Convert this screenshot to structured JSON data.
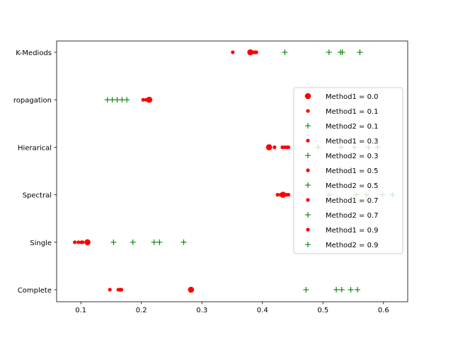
{
  "chart_data": {
    "type": "scatter",
    "categories": [
      "Complete",
      "Single ",
      "Spectral",
      "Hierarical",
      "ropagation",
      "K-Mediods"
    ],
    "xlim": [
      0.06,
      0.64
    ],
    "x_ticks": [
      0.1,
      0.2,
      0.3,
      0.4,
      0.5,
      0.6
    ],
    "x_tick_labels": [
      "0.1",
      "0.2",
      "0.3",
      "0.4",
      "0.5",
      "0.6"
    ],
    "legend_position": "center-right",
    "grid": false,
    "colors": {
      "method1": "#ff0000",
      "method2": "#008000"
    },
    "series": [
      {
        "name": "Method1 = 0.0",
        "marker": "big-dot",
        "color": "#ff0000",
        "points": [
          [
            0.282,
            0
          ],
          [
            0.111,
            1
          ],
          [
            0.434,
            2
          ],
          [
            0.411,
            3
          ],
          [
            0.213,
            4
          ],
          [
            0.38,
            5
          ]
        ]
      },
      {
        "name": "Method1 = 0.1",
        "marker": "dot",
        "color": "#ff0000",
        "points": [
          [
            0.148,
            0
          ],
          [
            0.09,
            1
          ],
          [
            0.425,
            2
          ],
          [
            0.42,
            3
          ],
          [
            0.203,
            4
          ],
          [
            0.351,
            5
          ]
        ]
      },
      {
        "name": "Method2 = 0.1",
        "marker": "plus",
        "color": "#008000",
        "points": [
          [
            0.472,
            0
          ],
          [
            0.154,
            1
          ],
          [
            0.51,
            2
          ],
          [
            0.492,
            3
          ],
          [
            0.144,
            4
          ],
          [
            0.437,
            5
          ]
        ]
      },
      {
        "name": "Method1 = 0.3",
        "marker": "dot",
        "color": "#ff0000",
        "points": [
          [
            0.162,
            0
          ],
          [
            0.096,
            1
          ],
          [
            0.43,
            2
          ],
          [
            0.433,
            3
          ],
          [
            0.208,
            4
          ],
          [
            0.386,
            5
          ]
        ]
      },
      {
        "name": "Method2 = 0.3",
        "marker": "plus",
        "color": "#008000",
        "points": [
          [
            0.522,
            0
          ],
          [
            0.186,
            1
          ],
          [
            0.555,
            2
          ],
          [
            0.53,
            3
          ],
          [
            0.152,
            4
          ],
          [
            0.51,
            5
          ]
        ]
      },
      {
        "name": "Method1 = 0.5",
        "marker": "dot",
        "color": "#ff0000",
        "points": [
          [
            0.165,
            0
          ],
          [
            0.101,
            1
          ],
          [
            0.437,
            2
          ],
          [
            0.437,
            3
          ],
          [
            0.21,
            4
          ],
          [
            0.388,
            5
          ]
        ]
      },
      {
        "name": "Method2 = 0.5",
        "marker": "plus",
        "color": "#008000",
        "points": [
          [
            0.531,
            0
          ],
          [
            0.221,
            1
          ],
          [
            0.572,
            2
          ],
          [
            0.552,
            3
          ],
          [
            0.16,
            4
          ],
          [
            0.529,
            5
          ]
        ]
      },
      {
        "name": "Method1 = 0.7",
        "marker": "dot",
        "color": "#ff0000",
        "points": [
          [
            0.166,
            0
          ],
          [
            0.102,
            1
          ],
          [
            0.44,
            2
          ],
          [
            0.441,
            3
          ],
          [
            0.211,
            4
          ],
          [
            0.389,
            5
          ]
        ]
      },
      {
        "name": "Method2 = 0.7",
        "marker": "plus",
        "color": "#008000",
        "points": [
          [
            0.546,
            0
          ],
          [
            0.23,
            1
          ],
          [
            0.598,
            2
          ],
          [
            0.575,
            3
          ],
          [
            0.168,
            4
          ],
          [
            0.532,
            5
          ]
        ]
      },
      {
        "name": "Method1 = 0.9",
        "marker": "dot",
        "color": "#ff0000",
        "points": [
          [
            0.167,
            0
          ],
          [
            0.103,
            1
          ],
          [
            0.443,
            2
          ],
          [
            0.443,
            3
          ],
          [
            0.212,
            4
          ],
          [
            0.39,
            5
          ]
        ]
      },
      {
        "name": "Method2 = 0.9",
        "marker": "plus",
        "color": "#008000",
        "points": [
          [
            0.557,
            0
          ],
          [
            0.27,
            1
          ],
          [
            0.615,
            2
          ],
          [
            0.59,
            3
          ],
          [
            0.176,
            4
          ],
          [
            0.561,
            5
          ]
        ]
      }
    ]
  }
}
